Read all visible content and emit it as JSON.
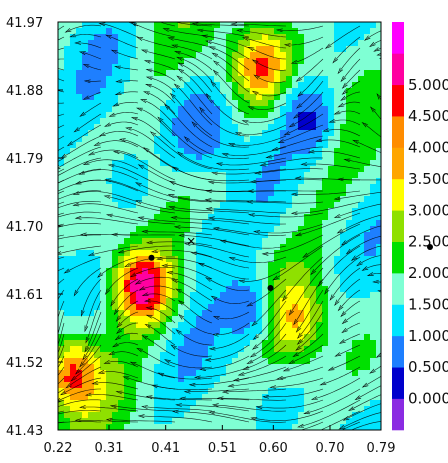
{
  "chart_data": {
    "type": "heatmap",
    "title": "",
    "xlabel": "",
    "ylabel": "",
    "xlim": [
      0.22,
      0.79
    ],
    "ylim": [
      41.43,
      41.97
    ],
    "x_ticks": [
      "0.22",
      "0.31",
      "0.41",
      "0.51",
      "0.60",
      "0.70",
      "0.79"
    ],
    "y_ticks": [
      "41.97",
      "41.88",
      "41.79",
      "41.70",
      "41.61",
      "41.52",
      "41.43"
    ],
    "overlay": "streamlines",
    "colorbar": {
      "placement": "right",
      "labels": [
        "0.000",
        "0.500",
        "1.000",
        "1.500",
        "2.000",
        "2.500",
        "3.000",
        "3.500",
        "4.000",
        "4.500",
        "5.000"
      ],
      "colors": [
        "#8a2be2",
        "#0000cc",
        "#1e7fff",
        "#00e5ff",
        "#7fffd4",
        "#00e000",
        "#8fe000",
        "#ffff00",
        "#ffa500",
        "#ff8c00",
        "#ff0000",
        "#ff00a0",
        "#ff00ff"
      ]
    },
    "hotspots": [
      {
        "x": 0.37,
        "y": 41.62,
        "value": 5.0
      },
      {
        "x": 0.25,
        "y": 41.5,
        "value": 4.2
      },
      {
        "x": 0.58,
        "y": 41.91,
        "value": 4.2
      },
      {
        "x": 0.63,
        "y": 41.58,
        "value": 3.8
      },
      {
        "x": 0.66,
        "y": 41.84,
        "value": 0.4
      },
      {
        "x": 0.47,
        "y": 41.83,
        "value": 0.5
      },
      {
        "x": 0.55,
        "y": 41.59,
        "value": 0.6
      },
      {
        "x": 0.5,
        "y": 41.67,
        "value": 1.0
      },
      {
        "x": 0.34,
        "y": 41.76,
        "value": 1.2
      }
    ],
    "markers": [
      {
        "x": 0.385,
        "y": 41.658,
        "symbol": "dot"
      },
      {
        "x": 0.595,
        "y": 41.618,
        "symbol": "dot"
      },
      {
        "x": 0.455,
        "y": 41.68,
        "symbol": "x"
      }
    ]
  }
}
